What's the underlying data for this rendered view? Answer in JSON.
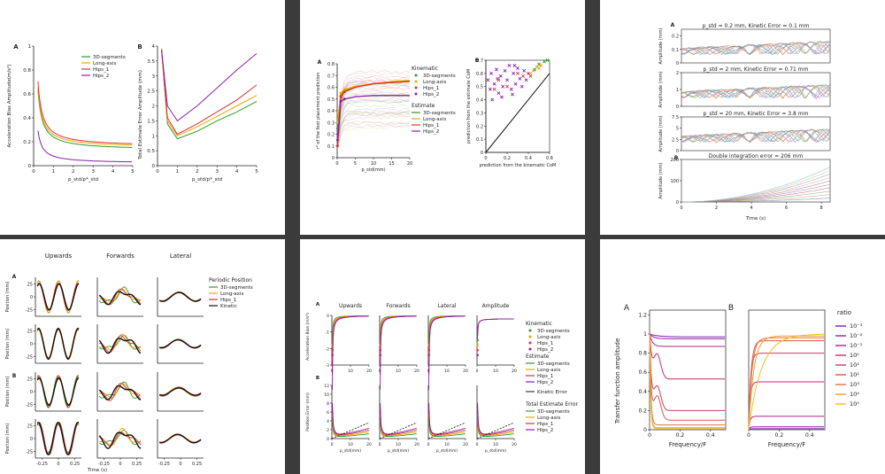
{
  "colors": {
    "seg3d": "#2e9a2e",
    "longaxis": "#f0a500",
    "hips1": "#e03030",
    "hips2": "#8a1fb0",
    "kinetic": "#111111"
  },
  "panels": [
    {
      "id": "p1",
      "label_a": "A",
      "label_b": "B",
      "a_ylabel": "Acceleration Bias Amplitude(m/s²)",
      "b_ylabel": "Total Estimate Error Amplitude (mm)",
      "xlabel": "p_std/p*_std",
      "legend": [
        "3D-segments",
        "Long-axis",
        "Hips_1",
        "Hips_2"
      ]
    },
    {
      "id": "p2",
      "label_a": "A",
      "label_b": "B",
      "a_ylabel": "r² of the foot placement prediction",
      "a_xlabel": "p_std(mm)",
      "b_ylabel": "prediction from the estimate CoM",
      "b_xlabel": "prediction from the kinematic CoM",
      "legend_kin_title": "Kinematic",
      "legend_est_title": "Estimate",
      "legend": [
        "3D-segments",
        "Long-axis",
        "Hips_1",
        "Hips_2"
      ]
    },
    {
      "id": "p3",
      "label_a": "A",
      "label_b": "B",
      "titles": [
        "p_std = 0.2 mm, Kinetic Error = 0.1 mm",
        "p_std = 2 mm, Kinetic Error = 0.71 mm",
        "p_std = 20 mm, Kinetic Error = 3.8 mm",
        "Double integration error = 206 mm"
      ],
      "ylabel": "Amplitude (mm)",
      "xlabel": "Time (s)"
    },
    {
      "id": "p4",
      "label_a": "A",
      "label_b": "B",
      "cols": [
        "Upwards",
        "Forwards",
        "Lateral"
      ],
      "ylabel": "Position (mm)",
      "xlabel": "Time (s)",
      "legend_title": "Periodic Position",
      "legend": [
        "3D-segments",
        "Long-axis",
        "Hips_1",
        "Kinetic"
      ]
    },
    {
      "id": "p5",
      "label_a": "A",
      "label_b": "B",
      "cols": [
        "Upwards",
        "Forwards",
        "Lateral",
        "Amplitude"
      ],
      "a_ylabel": "Acceleration Bias (m/s²)",
      "b_ylabel": "Position Error (mm)",
      "xlabel": "p_std(mm)",
      "legend_kin_title": "Kinematic",
      "legend_est_title": "Estimate",
      "legend_kinetic": "Kinetic Error",
      "legend_total_title": "Total Estimate Error",
      "legend": [
        "3D-segments",
        "Long-axis",
        "Hips_1",
        "Hips_2"
      ]
    },
    {
      "id": "p6",
      "label_a": "A",
      "label_b": "B",
      "ylabel": "Transfer function amplitude",
      "xlabel": "Frequency/F",
      "legend_title": "ratio",
      "ratios": [
        "10⁻³",
        "10⁻²",
        "10⁻¹",
        "10⁰",
        "10¹",
        "10²",
        "10³",
        "10⁴",
        "10⁵"
      ]
    }
  ],
  "chart_data": [
    {
      "panel": "p1-A",
      "type": "line",
      "xlabel": "p_std/p*_std",
      "ylabel": "Acceleration Bias Amplitude(m/s²)",
      "xlim": [
        0,
        5
      ],
      "ylim": [
        0,
        1.0
      ],
      "x_ticks": [
        0,
        1,
        2,
        3,
        4,
        5
      ],
      "y_ticks": [
        0.0,
        0.2,
        0.4,
        0.6,
        0.8,
        1.0
      ],
      "series": [
        {
          "name": "3D-segments",
          "asymptote": 0.13,
          "scale": 0.11
        },
        {
          "name": "Long-axis",
          "asymptote": 0.15,
          "scale": 0.11
        },
        {
          "name": "Hips_1",
          "asymptote": 0.16,
          "scale": 0.12
        },
        {
          "name": "Hips_2",
          "asymptote": 0.02,
          "scale": 0.06
        }
      ]
    },
    {
      "panel": "p1-B",
      "type": "line",
      "xlabel": "p_std/p*_std",
      "ylabel": "Total Estimate Error Amplitude (mm)",
      "xlim": [
        0,
        5
      ],
      "ylim": [
        0,
        4.0
      ],
      "x_ticks": [
        0,
        1,
        2,
        3,
        4,
        5
      ],
      "y_ticks": [
        0.0,
        0.5,
        1.0,
        1.5,
        2.0,
        2.5,
        3.0,
        3.5,
        4.0
      ],
      "series": [
        {
          "name": "3D-segments",
          "x": [
            0.2,
            0.5,
            1.0,
            2,
            3,
            4,
            5
          ],
          "y": [
            3.9,
            1.4,
            0.9,
            1.15,
            1.5,
            1.8,
            2.15
          ]
        },
        {
          "name": "Long-axis",
          "x": [
            0.2,
            0.5,
            1.0,
            2,
            3,
            4,
            5
          ],
          "y": [
            3.9,
            1.5,
            1.0,
            1.3,
            1.65,
            2.0,
            2.35
          ]
        },
        {
          "name": "Hips_1",
          "x": [
            0.2,
            0.5,
            1.0,
            2,
            3,
            4,
            5
          ],
          "y": [
            3.9,
            1.6,
            1.05,
            1.4,
            1.8,
            2.2,
            2.7
          ]
        },
        {
          "name": "Hips_2",
          "x": [
            0.2,
            0.5,
            1.0,
            2,
            3,
            4,
            5
          ],
          "y": [
            3.9,
            2.0,
            1.5,
            2.0,
            2.6,
            3.2,
            3.75
          ]
        }
      ]
    },
    {
      "panel": "p2-A",
      "type": "line",
      "xlabel": "p_std(mm)",
      "ylabel": "r² of the foot placement prediction",
      "xlim": [
        0,
        20
      ],
      "ylim": [
        0,
        0.8
      ],
      "x_ticks": [
        0,
        5,
        10,
        15,
        20
      ],
      "y_ticks": [
        0.0,
        0.1,
        0.2,
        0.3,
        0.4,
        0.5,
        0.6,
        0.7,
        0.8
      ],
      "series": [
        {
          "name": "3D-segments",
          "x": [
            0.1,
            1,
            2,
            5,
            10,
            15,
            20
          ],
          "y": [
            0.25,
            0.53,
            0.57,
            0.6,
            0.63,
            0.64,
            0.65
          ]
        },
        {
          "name": "Long-axis",
          "x": [
            0.1,
            1,
            2,
            5,
            10,
            15,
            20
          ],
          "y": [
            0.3,
            0.55,
            0.58,
            0.61,
            0.63,
            0.65,
            0.66
          ]
        },
        {
          "name": "Hips_1",
          "x": [
            0.1,
            1,
            2,
            5,
            10,
            15,
            20
          ],
          "y": [
            0.1,
            0.52,
            0.56,
            0.6,
            0.63,
            0.64,
            0.65
          ]
        },
        {
          "name": "Hips_2",
          "x": [
            0.1,
            1,
            2,
            5,
            10,
            15,
            20
          ],
          "y": [
            0.15,
            0.48,
            0.5,
            0.52,
            0.53,
            0.53,
            0.53
          ]
        }
      ]
    },
    {
      "panel": "p2-B",
      "type": "scatter",
      "xlabel": "prediction from the kinematic CoM",
      "ylabel": "prediction from the estimate CoM",
      "xlim": [
        0,
        0.6
      ],
      "ylim": [
        0,
        0.7
      ],
      "x_ticks": [
        0.0,
        0.2,
        0.4,
        0.6
      ],
      "y_ticks": [
        0.0,
        0.1,
        0.2,
        0.3,
        0.4,
        0.5,
        0.6,
        0.7
      ],
      "points": [
        [
          0.02,
          0.55,
          "hips2"
        ],
        [
          0.05,
          0.6,
          "hips2"
        ],
        [
          0.08,
          0.52,
          "hips2"
        ],
        [
          0.1,
          0.63,
          "hips2"
        ],
        [
          0.12,
          0.45,
          "hips2"
        ],
        [
          0.14,
          0.58,
          "hips2"
        ],
        [
          0.16,
          0.5,
          "hips2"
        ],
        [
          0.18,
          0.62,
          "hips2"
        ],
        [
          0.2,
          0.55,
          "hips2"
        ],
        [
          0.22,
          0.66,
          "hips2"
        ],
        [
          0.24,
          0.48,
          "hips2"
        ],
        [
          0.26,
          0.6,
          "hips2"
        ],
        [
          0.28,
          0.52,
          "hips2"
        ],
        [
          0.3,
          0.64,
          "hips2"
        ],
        [
          0.32,
          0.56,
          "hips2"
        ],
        [
          0.34,
          0.5,
          "hips2"
        ],
        [
          0.36,
          0.62,
          "hips2"
        ],
        [
          0.38,
          0.55,
          "hips2"
        ],
        [
          0.4,
          0.6,
          "hips2"
        ],
        [
          0.06,
          0.4,
          "hips2"
        ],
        [
          0.15,
          0.42,
          "hips2"
        ],
        [
          0.25,
          0.44,
          "hips2"
        ],
        [
          0.04,
          0.48,
          "hips2"
        ],
        [
          0.11,
          0.56,
          "hips2"
        ],
        [
          0.27,
          0.66,
          "hips2"
        ],
        [
          0.45,
          0.62,
          "longaxis"
        ],
        [
          0.48,
          0.65,
          "longaxis"
        ],
        [
          0.5,
          0.64,
          "longaxis"
        ],
        [
          0.42,
          0.6,
          "longaxis"
        ],
        [
          0.52,
          0.66,
          "longaxis"
        ],
        [
          0.55,
          0.69,
          "seg3d"
        ],
        [
          0.58,
          0.7,
          "seg3d"
        ],
        [
          0.46,
          0.63,
          "seg3d"
        ],
        [
          0.5,
          0.67,
          "seg3d"
        ],
        [
          0.35,
          0.58,
          "hips1"
        ],
        [
          0.3,
          0.6,
          "hips1"
        ],
        [
          0.2,
          0.5,
          "hips1"
        ],
        [
          0.12,
          0.55,
          "hips1"
        ],
        [
          0.42,
          0.58,
          "hips1"
        ],
        [
          0.08,
          0.48,
          "hips1"
        ]
      ]
    },
    {
      "panel": "p3",
      "type": "line",
      "xlabel": "Time (s)",
      "ylabel": "Amplitude (mm)",
      "xlim": [
        0,
        8.5
      ],
      "x_ticks": [
        0,
        2,
        4,
        6,
        8
      ],
      "subplots": [
        {
          "title": "p_std = 0.2 mm, Kinetic Error = 0.1 mm",
          "ylim": [
            0,
            0.25
          ],
          "y_ticks": [
            0.0,
            0.1,
            0.2
          ]
        },
        {
          "title": "p_std = 2 mm, Kinetic Error = 0.71 mm",
          "ylim": [
            0,
            2
          ],
          "y_ticks": [
            0,
            1,
            2
          ]
        },
        {
          "title": "p_std = 20 mm, Kinetic Error = 3.8 mm",
          "ylim": [
            0,
            7.5
          ],
          "y_ticks": [
            0.0,
            2.5,
            5.0,
            7.5
          ]
        },
        {
          "title": "Double integration error = 206 mm",
          "ylim": [
            0,
            200
          ],
          "y_ticks": [
            0,
            100,
            200
          ]
        }
      ]
    },
    {
      "panel": "p4",
      "type": "line",
      "xlabel": "Time (s)",
      "ylabel": "Position (mm)",
      "x_ticks": [
        -0.25,
        0.0,
        0.25
      ],
      "y_ticks": [
        -25,
        0,
        25
      ],
      "columns": [
        "Upwards",
        "Forwards",
        "Lateral"
      ],
      "amplitudes": [
        28,
        12,
        8
      ],
      "series": [
        "3D-segments",
        "Long-axis",
        "Hips_1",
        "Kinetic"
      ]
    },
    {
      "panel": "p5",
      "type": "line",
      "xlabel": "p_std(mm)",
      "a_ylabel": "Acceleration Bias (m/s²)",
      "b_ylabel": "Position Error (mm)",
      "a_ylim": [
        -3,
        0
      ],
      "b_ylim": [
        0,
        12
      ],
      "x_ticks": [
        0,
        10,
        20
      ],
      "columns": [
        "Upwards",
        "Forwards",
        "Lateral",
        "Amplitude"
      ]
    },
    {
      "panel": "p6",
      "type": "line",
      "xlabel": "Frequency/F",
      "ylabel": "Transfer function amplitude",
      "xlim": [
        0,
        0.5
      ],
      "ylim": [
        0,
        1.25
      ],
      "x_ticks": [
        0.0,
        0.2,
        0.4
      ],
      "y_ticks": [
        0.0,
        0.2,
        0.4,
        0.6,
        0.8,
        1.0,
        1.2
      ],
      "legend_title": "ratio",
      "ratios": [
        "10⁻³",
        "10⁻²",
        "10⁻¹",
        "10⁰",
        "10¹",
        "10²",
        "10³",
        "10⁴",
        "10⁵"
      ],
      "ratio_colors": [
        "#7a1fb0",
        "#9a1fa8",
        "#b0208f",
        "#c42a78",
        "#d23a62",
        "#df544e",
        "#e8703c",
        "#eea030",
        "#f2c020"
      ],
      "a_final": [
        0.97,
        0.95,
        0.87,
        0.53,
        0.2,
        0.1,
        0.05,
        0.02,
        0.01
      ],
      "b_final": [
        0.01,
        0.03,
        0.14,
        0.5,
        0.8,
        0.93,
        0.96,
        0.98,
        1.0
      ]
    }
  ]
}
